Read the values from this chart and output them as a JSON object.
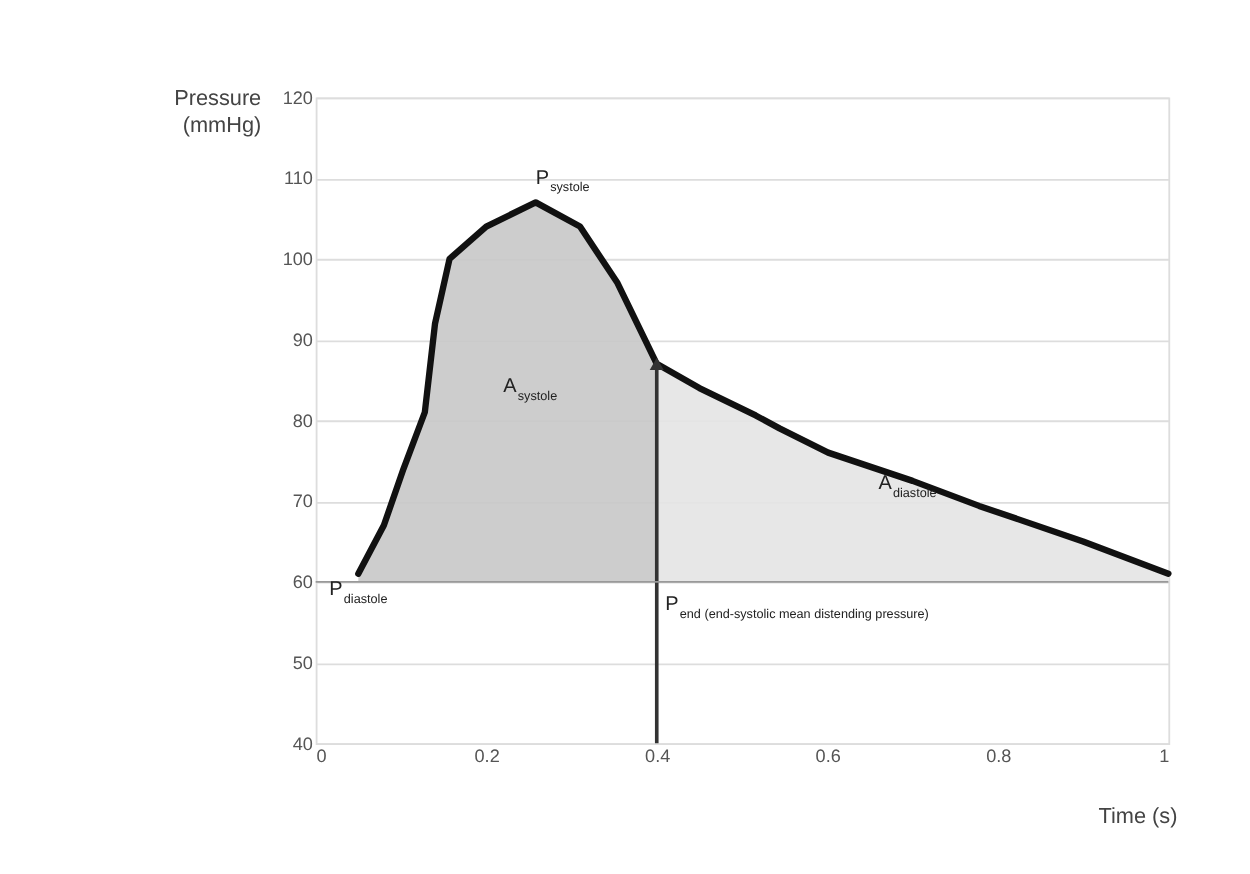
{
  "chart_data": {
    "type": "line",
    "xlabel": "Time (s)",
    "ylabel": "Pressure (mmHg)",
    "series": [
      {
        "type": "area",
        "color": "#c8c8c8",
        "x": [
          0.05,
          0.08,
          0.103,
          0.128,
          0.14,
          0.157,
          0.2,
          0.258,
          0.31,
          0.354,
          0.4
        ],
        "values": [
          61,
          67,
          74,
          81,
          92,
          100,
          104,
          107,
          104,
          97,
          87
        ]
      },
      {
        "type": "area",
        "color": "#e4e4e4",
        "x": [
          0.4,
          0.45,
          0.516,
          0.544,
          0.601,
          0.7,
          0.778,
          0.9,
          1.0
        ],
        "values": [
          87,
          84,
          80.6,
          79,
          76,
          72.5,
          69.4,
          65,
          61
        ]
      },
      {
        "color": "#111111",
        "x": [
          0.05,
          0.08,
          0.103,
          0.128,
          0.14,
          0.157,
          0.2,
          0.258,
          0.31,
          0.354,
          0.4,
          0.45,
          0.516,
          0.544,
          0.601,
          0.7,
          0.778,
          0.9,
          1.0
        ],
        "values": [
          61,
          67,
          74,
          81,
          92,
          100,
          104,
          107,
          104,
          97,
          87,
          84,
          80.6,
          79,
          76,
          72.5,
          69.4,
          65,
          61
        ]
      }
    ],
    "ref_lines": [
      {
        "axis": "x",
        "value": 0.4,
        "color": "#333333"
      },
      {
        "axis": "y",
        "value": 60,
        "color": "#999999"
      }
    ],
    "annotations": [
      {
        "text": "P$_{systole}$",
        "x": 0.258,
        "y": 107
      },
      "A$_{systole}$",
      "A$_{diastole}$",
      {
        "text": "P$_{diastole}$",
        "x": 0.05,
        "y": 61
      },
      "P$_{end (end-systolic mean distending pressure)}$"
    ],
    "xlim": [
      0,
      1
    ],
    "xticks": [
      0,
      0.2,
      0.4,
      0.6,
      0.8,
      1
    ],
    "ylim": [
      40,
      120
    ],
    "yticks": [
      40,
      50,
      60,
      70,
      80,
      90,
      100,
      110,
      120
    ],
    "grid": "y"
  }
}
